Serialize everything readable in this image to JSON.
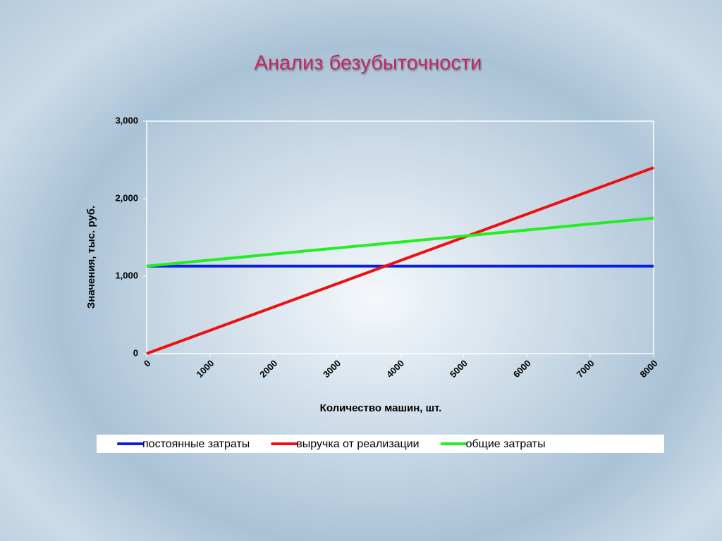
{
  "chart_data": {
    "type": "line",
    "title": "Анализ безубыточности",
    "x_label": "Количество машин, шт.",
    "y_label": "Значения, тыс. руб.",
    "x": [
      0,
      8000
    ],
    "series": [
      {
        "name": "постоянные затраты",
        "color": "#0a1ee0",
        "values": [
          1130,
          1130
        ]
      },
      {
        "name": "выручка от реализации",
        "color": "#ee1010",
        "values": [
          0,
          2400
        ]
      },
      {
        "name": "общие затраты",
        "color": "#22ee22",
        "values": [
          1130,
          1750
        ]
      }
    ],
    "xlim": [
      0,
      8000
    ],
    "xticks": [
      0,
      1000,
      2000,
      3000,
      4000,
      5000,
      6000,
      7000,
      8000
    ],
    "ylim": [
      0,
      3000
    ],
    "yticks": [
      0,
      {
        "value": 1000,
        "label": "1,000"
      },
      {
        "value": 2000,
        "label": "2,000"
      },
      {
        "value": 3000,
        "label": "3,000"
      }
    ],
    "grid": false,
    "legend": "bottom"
  }
}
